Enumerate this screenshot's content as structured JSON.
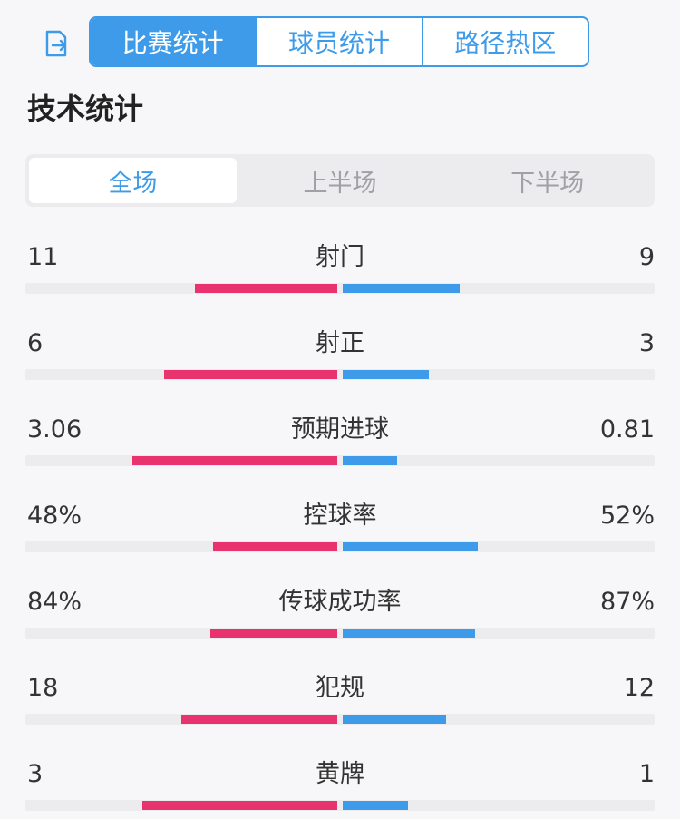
{
  "top_tabs": [
    {
      "label": "比赛统计",
      "active": true
    },
    {
      "label": "球员统计",
      "active": false
    },
    {
      "label": "路径热区",
      "active": false
    }
  ],
  "section_title": "技术统计",
  "period_tabs": [
    {
      "label": "全场",
      "active": true
    },
    {
      "label": "上半场",
      "active": false
    },
    {
      "label": "下半场",
      "active": false
    }
  ],
  "colors": {
    "home": "#e8336f",
    "away": "#3d9bea",
    "accent": "#3d9bea"
  },
  "stats": [
    {
      "label": "射门",
      "home": "11",
      "away": "9",
      "home_share": 0.55,
      "away_share": 0.45
    },
    {
      "label": "射正",
      "home": "6",
      "away": "3",
      "home_share": 0.667,
      "away_share": 0.333
    },
    {
      "label": "预期进球",
      "home": "3.06",
      "away": "0.81",
      "home_share": 0.79,
      "away_share": 0.21
    },
    {
      "label": "控球率",
      "home": "48%",
      "away": "52%",
      "home_share": 0.48,
      "away_share": 0.52
    },
    {
      "label": "传球成功率",
      "home": "84%",
      "away": "87%",
      "home_share": 0.49,
      "away_share": 0.51
    },
    {
      "label": "犯规",
      "home": "18",
      "away": "12",
      "home_share": 0.6,
      "away_share": 0.4
    },
    {
      "label": "黄牌",
      "home": "3",
      "away": "1",
      "home_share": 0.75,
      "away_share": 0.25
    }
  ]
}
